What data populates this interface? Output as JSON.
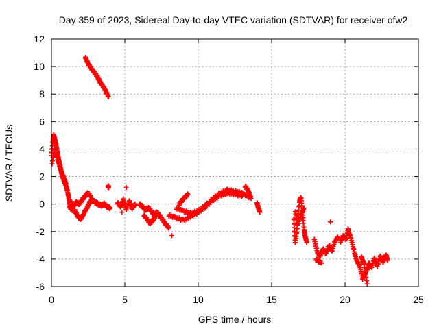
{
  "chart_data": {
    "type": "scatter",
    "title": "Day 359 of 2023, Sidereal Day-to-day VTEC variation (SDTVAR) for receiver ofw2",
    "xlabel": "GPS time / hours",
    "ylabel": "SDTVAR / TECUs",
    "xlim": [
      0,
      25
    ],
    "ylim": [
      -6,
      12
    ],
    "xticks": [
      0,
      5,
      10,
      15,
      20,
      25
    ],
    "yticks": [
      -6,
      -4,
      -2,
      0,
      2,
      4,
      6,
      8,
      10,
      12
    ],
    "grid": true,
    "marker": "+",
    "series_color": "#ff0000",
    "series": [
      {
        "name": "SDTVAR",
        "segments": [
          {
            "x": [
              0.0,
              0.1,
              0.15,
              0.2,
              0.3,
              0.4,
              0.5,
              0.6,
              0.7,
              0.8,
              0.9,
              1.0,
              1.1,
              1.2,
              1.3
            ],
            "y": [
              3.6,
              4.6,
              5.0,
              4.8,
              4.4,
              3.8,
              3.2,
              2.7,
              2.2,
              1.9,
              1.6,
              1.3,
              0.9,
              0.3,
              -0.3
            ]
          },
          {
            "x": [
              0.05,
              0.2,
              0.4,
              0.6,
              0.8,
              1.0
            ],
            "y": [
              3.0,
              4.0,
              3.3,
              2.6,
              2.0,
              1.5
            ]
          },
          {
            "x": [
              1.2,
              1.4,
              1.6,
              1.8,
              2.0,
              2.2,
              2.4,
              2.6,
              2.8,
              3.0,
              3.2,
              3.4,
              3.6,
              3.8,
              4.0
            ],
            "y": [
              -0.2,
              -0.4,
              -0.5,
              -0.9,
              -1.1,
              -0.7,
              -0.3,
              0.1,
              0.3,
              0.1,
              0.0,
              -0.1,
              0.0,
              -0.2,
              -0.3
            ]
          },
          {
            "x": [
              1.3,
              1.5,
              1.7,
              1.9,
              2.1,
              2.3,
              2.5,
              2.7
            ],
            "y": [
              0.2,
              -0.1,
              0.1,
              0.0,
              0.3,
              0.6,
              0.8,
              0.5
            ]
          },
          {
            "x": [
              2.3,
              2.5,
              2.7,
              2.9,
              3.1,
              3.3,
              3.5,
              3.7,
              3.9
            ],
            "y": [
              10.7,
              10.2,
              9.9,
              9.6,
              9.3,
              8.9,
              8.6,
              8.2,
              7.8
            ]
          },
          {
            "x": [
              3.85,
              3.9
            ],
            "y": [
              1.3,
              1.2
            ]
          },
          {
            "x": [
              4.5,
              4.7,
              4.9,
              5.1,
              5.3,
              5.5,
              5.7
            ],
            "y": [
              0.1,
              -0.2,
              0.3,
              -0.4,
              0.2,
              -0.3,
              0.0
            ]
          },
          {
            "x": [
              4.8
            ],
            "y": [
              -0.6
            ]
          },
          {
            "x": [
              5.1
            ],
            "y": [
              1.2
            ]
          },
          {
            "x": [
              6.0,
              6.2,
              6.4,
              6.6,
              6.8,
              7.0,
              7.2,
              7.4,
              7.6,
              7.8,
              8.0
            ],
            "y": [
              0.0,
              -0.2,
              -0.4,
              -0.3,
              -0.5,
              -0.8,
              -0.6,
              -0.9,
              -1.2,
              -1.5,
              -1.7
            ]
          },
          {
            "x": [
              6.3,
              6.5,
              6.7,
              6.9,
              7.1
            ],
            "y": [
              -0.8,
              -1.1,
              -1.4,
              -1.2,
              -0.9
            ]
          },
          {
            "x": [
              8.2
            ],
            "y": [
              -2.3
            ]
          },
          {
            "x": [
              8.0,
              8.5,
              9.0,
              9.5,
              10.0,
              10.5,
              11.0,
              11.5,
              12.0,
              12.5,
              13.0
            ],
            "y": [
              -0.8,
              -1.0,
              -1.2,
              -0.9,
              -0.6,
              -0.2,
              0.3,
              0.6,
              0.8,
              0.7,
              0.6
            ]
          },
          {
            "x": [
              8.5,
              9.0,
              9.5,
              10.0,
              10.5,
              11.0,
              11.5,
              12.0,
              12.5,
              13.0,
              13.5
            ],
            "y": [
              -0.3,
              -0.5,
              -0.7,
              -0.5,
              -0.1,
              0.4,
              0.8,
              1.0,
              0.9,
              0.8,
              0.5
            ]
          },
          {
            "x": [
              8.7,
              9.0,
              9.3
            ],
            "y": [
              0.0,
              0.4,
              0.7
            ]
          },
          {
            "x": [
              13.2,
              13.4,
              13.6
            ],
            "y": [
              1.3,
              1.0,
              0.4
            ]
          },
          {
            "x": [
              14.0,
              14.1,
              14.2
            ],
            "y": [
              0.1,
              -0.3,
              -0.6
            ]
          },
          {
            "x": [
              16.5,
              16.6,
              16.7,
              16.8,
              16.9,
              17.0,
              17.1,
              17.2,
              17.3,
              17.4
            ],
            "y": [
              -1.0,
              -2.8,
              -2.2,
              -1.0,
              0.2,
              0.5,
              -0.6,
              -1.8,
              -2.4,
              -2.8
            ]
          },
          {
            "x": [
              16.6,
              16.8,
              17.0,
              17.2
            ],
            "y": [
              -0.5,
              -1.4,
              -0.8,
              -0.3
            ]
          },
          {
            "x": [
              17.9,
              18.1,
              18.3,
              18.5,
              18.7,
              18.9,
              19.1,
              19.3,
              19.5
            ],
            "y": [
              -2.5,
              -3.5,
              -3.8,
              -3.3,
              -3.6,
              -3.0,
              -3.4,
              -2.8,
              -2.4
            ]
          },
          {
            "x": [
              18.0,
              18.4
            ],
            "y": [
              -4.0,
              -4.3
            ]
          },
          {
            "x": [
              19.0
            ],
            "y": [
              -1.3
            ]
          },
          {
            "x": [
              19.7,
              19.9,
              20.1,
              20.2
            ],
            "y": [
              -2.7,
              -2.3,
              -2.6,
              -1.8
            ]
          },
          {
            "x": [
              20.2,
              20.4,
              20.6,
              20.8,
              21.0,
              21.2,
              21.4,
              21.6
            ],
            "y": [
              -1.8,
              -2.5,
              -3.4,
              -4.1,
              -4.5,
              -5.4,
              -5.0,
              -4.5
            ]
          },
          {
            "x": [
              21.1,
              21.3,
              21.5
            ],
            "y": [
              -3.8,
              -4.4,
              -5.8
            ]
          },
          {
            "x": [
              21.6,
              21.8,
              22.0,
              22.2,
              22.4,
              22.6,
              22.8,
              22.9
            ],
            "y": [
              -4.3,
              -4.6,
              -4.0,
              -4.5,
              -3.8,
              -4.2,
              -3.7,
              -4.1
            ]
          }
        ]
      }
    ]
  }
}
